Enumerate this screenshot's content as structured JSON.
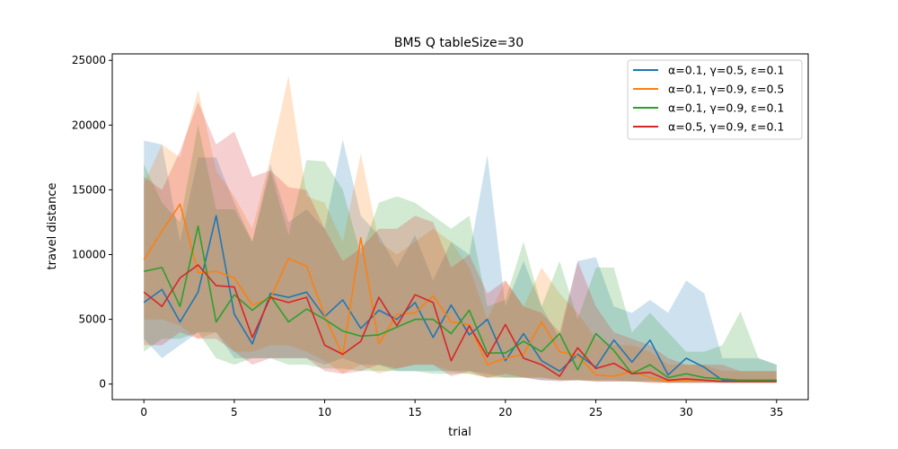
{
  "chart_data": {
    "type": "line",
    "title": "BM5  Q  tableSize=30",
    "xlabel": "trial",
    "ylabel": "travel distance",
    "xlim": [
      -1.75,
      36.75
    ],
    "ylim": [
      -1200,
      25500
    ],
    "xticks": [
      0,
      5,
      10,
      15,
      20,
      25,
      30,
      35
    ],
    "yticks": [
      0,
      5000,
      10000,
      15000,
      20000,
      25000
    ],
    "xtick_labels": [
      "0",
      "5",
      "10",
      "15",
      "20",
      "25",
      "30",
      "35"
    ],
    "ytick_labels": [
      "0",
      "5000",
      "10000",
      "15000",
      "20000",
      "25000"
    ],
    "grid": false,
    "legend_position": "top-right",
    "band_opacity": 0.22,
    "x": [
      0,
      1,
      2,
      3,
      4,
      5,
      6,
      7,
      8,
      9,
      10,
      11,
      12,
      13,
      14,
      15,
      16,
      17,
      18,
      19,
      20,
      21,
      22,
      23,
      24,
      25,
      26,
      27,
      28,
      29,
      30,
      31,
      32,
      33,
      34,
      35
    ],
    "series": [
      {
        "name": "α=0.1, γ=0.5, ε=0.1",
        "color": "#1f77b4",
        "values": [
          6300,
          7300,
          4800,
          7100,
          13000,
          5400,
          3100,
          7000,
          6700,
          7100,
          5200,
          6500,
          4300,
          5700,
          5000,
          6300,
          3600,
          6100,
          3800,
          5000,
          1800,
          3900,
          1800,
          1000,
          2300,
          1300,
          3400,
          1700,
          3400,
          700,
          2000,
          1300,
          300,
          300,
          300,
          300
        ],
        "upper": [
          18800,
          18500,
          11000,
          17500,
          17500,
          14000,
          11000,
          17000,
          12500,
          13500,
          12000,
          18900,
          13000,
          11500,
          9000,
          11500,
          8000,
          11000,
          10000,
          17700,
          6000,
          9500,
          6000,
          3500,
          9500,
          9800,
          6000,
          5500,
          6500,
          5500,
          8000,
          7000,
          2000,
          2000,
          2000,
          1500
        ],
        "lower": [
          3500,
          2000,
          3000,
          4000,
          4000,
          2000,
          2000,
          2000,
          2000,
          2000,
          1500,
          2000,
          1500,
          1500,
          1000,
          1000,
          1000,
          1000,
          1000,
          800,
          500,
          500,
          300,
          300,
          300,
          200,
          200,
          200,
          200,
          100,
          100,
          100,
          100,
          100,
          100,
          100
        ]
      },
      {
        "name": "α=0.1, γ=0.9, ε=0.5",
        "color": "#ff7f0e",
        "values": [
          9600,
          11800,
          13900,
          8600,
          8700,
          8200,
          6100,
          6600,
          9700,
          9100,
          5300,
          2200,
          11300,
          3100,
          5400,
          5500,
          6800,
          4800,
          4600,
          1500,
          2000,
          2300,
          4800,
          2500,
          2200,
          700,
          600,
          1000,
          500,
          200,
          300,
          300,
          200,
          200,
          200,
          200
        ],
        "upper": [
          15500,
          18500,
          17500,
          22700,
          16500,
          14500,
          12000,
          17500,
          23800,
          14500,
          14000,
          11000,
          17800,
          11000,
          10000,
          11000,
          12000,
          11000,
          9000,
          5000,
          8000,
          6000,
          9000,
          7000,
          5500,
          3500,
          3000,
          3000,
          2500,
          1500,
          1500,
          1500,
          1000,
          1000,
          1000,
          1000
        ],
        "lower": [
          5000,
          5000,
          4500,
          3500,
          4000,
          2500,
          2500,
          3000,
          3000,
          2500,
          1800,
          800,
          1500,
          800,
          1200,
          1500,
          1500,
          1000,
          800,
          500,
          500,
          500,
          500,
          300,
          300,
          200,
          200,
          200,
          100,
          100,
          100,
          100,
          100,
          100,
          100,
          100
        ]
      },
      {
        "name": "α=0.1, γ=0.9, ε=0.1",
        "color": "#2ca02c",
        "values": [
          8700,
          9000,
          6000,
          12200,
          4800,
          6900,
          5700,
          6800,
          4800,
          5800,
          5000,
          4100,
          3700,
          3800,
          4400,
          5000,
          5000,
          3900,
          5700,
          2400,
          2400,
          3300,
          2500,
          3900,
          1100,
          3900,
          2600,
          800,
          1500,
          500,
          800,
          500,
          400,
          300,
          300,
          300
        ],
        "upper": [
          17000,
          14000,
          12500,
          20000,
          13500,
          13500,
          11000,
          16500,
          11500,
          17300,
          17200,
          15000,
          10000,
          14000,
          14500,
          14000,
          13000,
          12000,
          13000,
          6000,
          6500,
          11000,
          6000,
          9500,
          5000,
          9000,
          9000,
          4000,
          5500,
          4000,
          2500,
          2500,
          3000,
          5600,
          2000,
          1500
        ],
        "lower": [
          2500,
          3500,
          3500,
          4000,
          2000,
          1500,
          2000,
          2000,
          1500,
          1500,
          1200,
          1200,
          1000,
          1000,
          1000,
          1000,
          800,
          800,
          800,
          500,
          500,
          500,
          500,
          300,
          300,
          300,
          300,
          200,
          200,
          100,
          100,
          100,
          100,
          100,
          100,
          100
        ]
      },
      {
        "name": "α=0.5, γ=0.9, ε=0.1",
        "color": "#d62728",
        "values": [
          7100,
          6000,
          8200,
          9200,
          7600,
          7500,
          3600,
          6700,
          6300,
          6700,
          3000,
          2300,
          3300,
          6700,
          4500,
          6900,
          6300,
          1800,
          4500,
          2100,
          4600,
          2000,
          1500,
          600,
          2800,
          1200,
          1600,
          800,
          900,
          300,
          400,
          300,
          200,
          200,
          200,
          200
        ],
        "upper": [
          16000,
          15000,
          18000,
          21800,
          18500,
          19500,
          16000,
          16500,
          15200,
          15000,
          12000,
          9500,
          10500,
          12000,
          12000,
          13000,
          12500,
          9000,
          10000,
          7000,
          8000,
          6000,
          5500,
          4000,
          9500,
          6000,
          4000,
          3500,
          3000,
          2000,
          1500,
          1500,
          1500,
          1000,
          1000,
          1000
        ],
        "lower": [
          3000,
          3000,
          4000,
          3500,
          3500,
          2500,
          1500,
          2000,
          2000,
          2000,
          1000,
          800,
          1000,
          1500,
          1200,
          1500,
          1500,
          600,
          1000,
          500,
          800,
          500,
          300,
          200,
          300,
          200,
          200,
          200,
          100,
          100,
          100,
          100,
          100,
          100,
          100,
          100
        ]
      }
    ]
  }
}
